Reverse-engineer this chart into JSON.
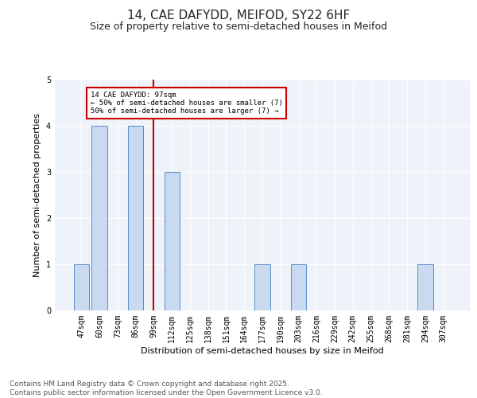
{
  "title1": "14, CAE DAFYDD, MEIFOD, SY22 6HF",
  "title2": "Size of property relative to semi-detached houses in Meifod",
  "xlabel": "Distribution of semi-detached houses by size in Meifod",
  "ylabel": "Number of semi-detached properties",
  "categories": [
    "47sqm",
    "60sqm",
    "73sqm",
    "86sqm",
    "99sqm",
    "112sqm",
    "125sqm",
    "138sqm",
    "151sqm",
    "164sqm",
    "177sqm",
    "190sqm",
    "203sqm",
    "216sqm",
    "229sqm",
    "242sqm",
    "255sqm",
    "268sqm",
    "281sqm",
    "294sqm",
    "307sqm"
  ],
  "values": [
    1,
    4,
    0,
    4,
    0,
    3,
    0,
    0,
    0,
    0,
    1,
    0,
    1,
    0,
    0,
    0,
    0,
    0,
    0,
    1,
    0
  ],
  "bar_color": "#c9d9f0",
  "bar_edge_color": "#5b8ec7",
  "vline_x": 4,
  "vline_color": "#cc0000",
  "annotation_box_text": "14 CAE DAFYDD: 97sqm\n← 50% of semi-detached houses are smaller (7)\n50% of semi-detached houses are larger (7) →",
  "annotation_box_color": "#cc0000",
  "ylim": [
    0,
    5
  ],
  "yticks": [
    0,
    1,
    2,
    3,
    4,
    5
  ],
  "background_color": "#eef2f9",
  "grid_color": "#ffffff",
  "footer_text": "Contains HM Land Registry data © Crown copyright and database right 2025.\nContains public sector information licensed under the Open Government Licence v3.0.",
  "title_fontsize": 11,
  "subtitle_fontsize": 9,
  "axis_label_fontsize": 8,
  "tick_fontsize": 7,
  "footer_fontsize": 6.5
}
